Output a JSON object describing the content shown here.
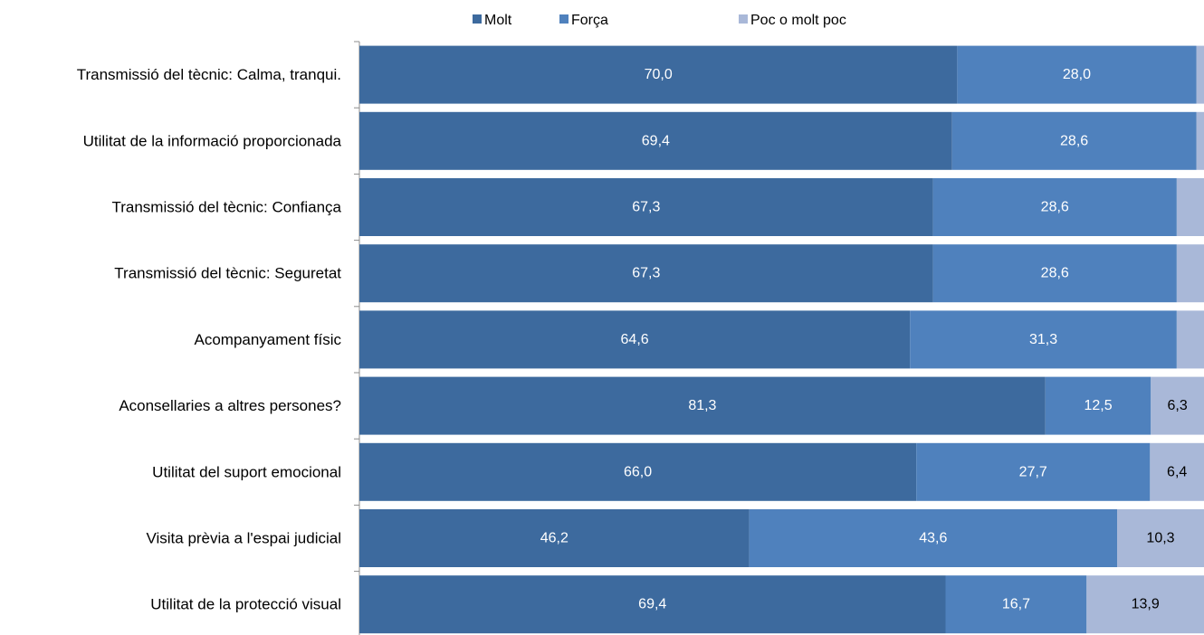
{
  "chart_data": {
    "type": "bar",
    "orientation": "horizontal",
    "stacked": true,
    "percent_stacked": true,
    "legend_position": "top",
    "grid": false,
    "categories": [
      "Transmissió del tècnic: Calma, tranqui.",
      "Utilitat de la informació proporcionada",
      "Transmissió del tècnic: Confiança",
      "Transmissió del tècnic: Seguretat",
      "Acompanyament físic",
      "Aconsellaries a altres persones?",
      "Utilitat del suport emocional",
      "Visita prèvia a l'espai judicial",
      "Utilitat de la protecció visual"
    ],
    "series": [
      {
        "name": "Molt",
        "color": "#3d6a9e",
        "label_color": "#ffffff",
        "values": [
          70.0,
          69.4,
          67.3,
          67.3,
          64.6,
          81.3,
          66.0,
          46.2,
          69.4
        ],
        "labels": [
          "70,0",
          "69,4",
          "67,3",
          "67,3",
          "64,6",
          "81,3",
          "66,0",
          "46,2",
          "69,4"
        ]
      },
      {
        "name": "Força",
        "color": "#4f81bd",
        "label_color": "#ffffff",
        "values": [
          28.0,
          28.6,
          28.6,
          28.6,
          31.3,
          12.5,
          27.7,
          43.6,
          16.7
        ],
        "labels": [
          "28,0",
          "28,6",
          "28,6",
          "28,6",
          "31,3",
          "12,5",
          "27,7",
          "43,6",
          "16,7"
        ]
      },
      {
        "name": "Poc o molt poc",
        "color": "#a9b8d8",
        "label_color": "#000000",
        "values": [
          0.9,
          0.9,
          3.2,
          3.2,
          3.2,
          6.3,
          6.4,
          10.3,
          13.9
        ],
        "labels": [
          "",
          "",
          "",
          "",
          "",
          "6,3",
          "6,4",
          "10,3",
          "13,9"
        ]
      }
    ]
  }
}
